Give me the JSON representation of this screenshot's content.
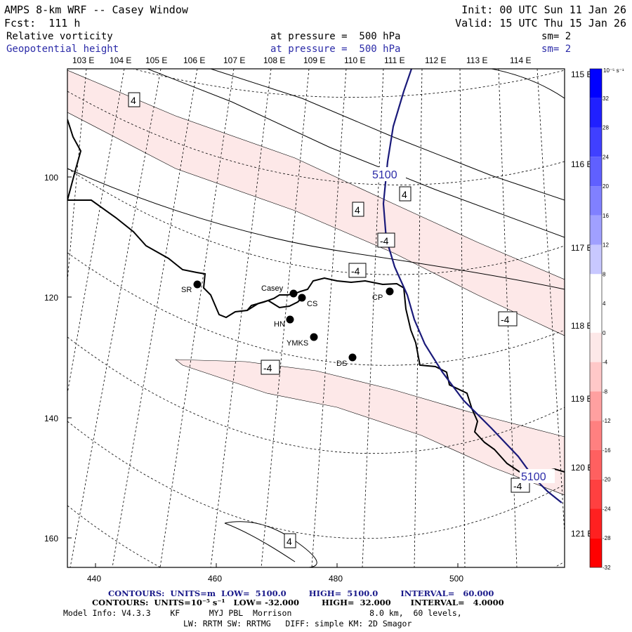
{
  "header": {
    "title": "AMPS 8-km WRF -- Casey Window",
    "forecast": "Fcst:  111 h",
    "init": "Init: 00 UTC Sun 11 Jan 26",
    "valid": "Valid: 15 UTC Thu 15 Jan 26",
    "field1": {
      "name": "Relative vorticity",
      "level": "at pressure =  500 hPa",
      "smooth": "sm= 2"
    },
    "field2": {
      "name": "Geopotential height",
      "level": "at pressure =  500 hPa",
      "smooth": "sm= 2"
    }
  },
  "axes": {
    "longitude_labels": [
      "103 E",
      "104 E",
      "105 E",
      "106 E",
      "107 E",
      "108 E",
      "109 E",
      "110 E",
      "111 E",
      "112 E",
      "113 E",
      "114 E"
    ],
    "latitude_labels_right": [
      "115 E",
      "116 E",
      "117 E",
      "118 E",
      "119 E",
      "120 E",
      "121 E"
    ],
    "y_ticks": [
      "100",
      "120",
      "140",
      "160"
    ],
    "x_ticks": [
      "440",
      "460",
      "480",
      "500"
    ]
  },
  "stations": [
    {
      "id": "SR"
    },
    {
      "id": "Casey"
    },
    {
      "id": "CS"
    },
    {
      "id": "HN"
    },
    {
      "id": "YMKS"
    },
    {
      "id": "DS"
    },
    {
      "id": "CP"
    }
  ],
  "contour_labels": {
    "height": [
      "5100",
      "5100"
    ],
    "vorticity": [
      "4",
      "4",
      "4",
      "-4",
      "-4",
      "-4",
      "-4",
      "-4",
      "4"
    ]
  },
  "colorbar": {
    "unit": "10⁻⁵ s⁻¹",
    "ticks": [
      "32",
      "28",
      "24",
      "20",
      "16",
      "12",
      "8",
      "4",
      "0",
      "-4",
      "-8",
      "-12",
      "-16",
      "-20",
      "-24",
      "-28",
      "-32"
    ],
    "colors_top_to_bottom": [
      "#0000ff",
      "#2020ff",
      "#4040ff",
      "#6060ff",
      "#8080ff",
      "#a0a0ff",
      "#c8c8ff",
      "#ffffff",
      "#ffffff",
      "#fde8e8",
      "#ffc8c8",
      "#ffa0a0",
      "#ff8080",
      "#ff6060",
      "#ff4040",
      "#ff2020",
      "#ff0000"
    ]
  },
  "footer": {
    "contours_height": "CONTOURS:  UNITS=m  LOW=  5100.0        HIGH=  5100.0        INTERVAL=   60.000",
    "contours_vort": "CONTOURS:  UNITS=10⁻⁵ s⁻¹   LOW= -32.000        HIGH=  32.000       INTERVAL=   4.0000",
    "model_info": "Model Info: V4.3.3    KF      MYJ PBL  Morrison                8.0 km,  60 levels,",
    "physics": "LW: RRTM SW: RRTMG   DIFF: simple KM: 2D Smagor"
  }
}
